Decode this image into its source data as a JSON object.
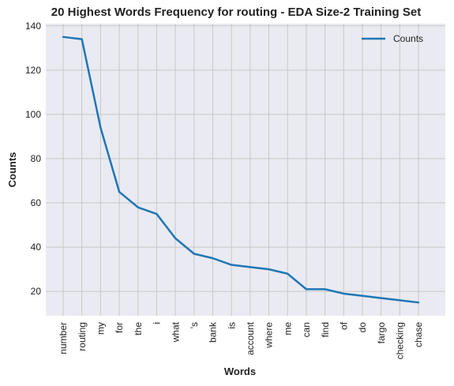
{
  "chart_data": {
    "type": "line",
    "title": "20 Highest Words Frequency for routing - EDA Size-2 Training Set",
    "xlabel": "Words",
    "ylabel": "Counts",
    "categories": [
      "number",
      "routing",
      "my",
      "for",
      "the",
      "i",
      "what",
      "'s",
      "bank",
      "is",
      "account",
      "where",
      "me",
      "can",
      "find",
      "of",
      "do",
      "fargo",
      "checking",
      "chase"
    ],
    "series": [
      {
        "name": "Counts",
        "values": [
          135,
          134,
          94,
          65,
          58,
          55,
          44,
          37,
          35,
          32,
          31,
          30,
          28,
          21,
          21,
          19,
          18,
          17,
          16,
          15
        ],
        "color": "#1f77b4"
      }
    ],
    "yticks": [
      20,
      40,
      60,
      80,
      100,
      120,
      140
    ],
    "ylim": [
      9,
      141
    ],
    "grid": true,
    "legend_position": "top-right",
    "background_color": "#eaeaf2",
    "grid_color": "#c8c8c8"
  }
}
